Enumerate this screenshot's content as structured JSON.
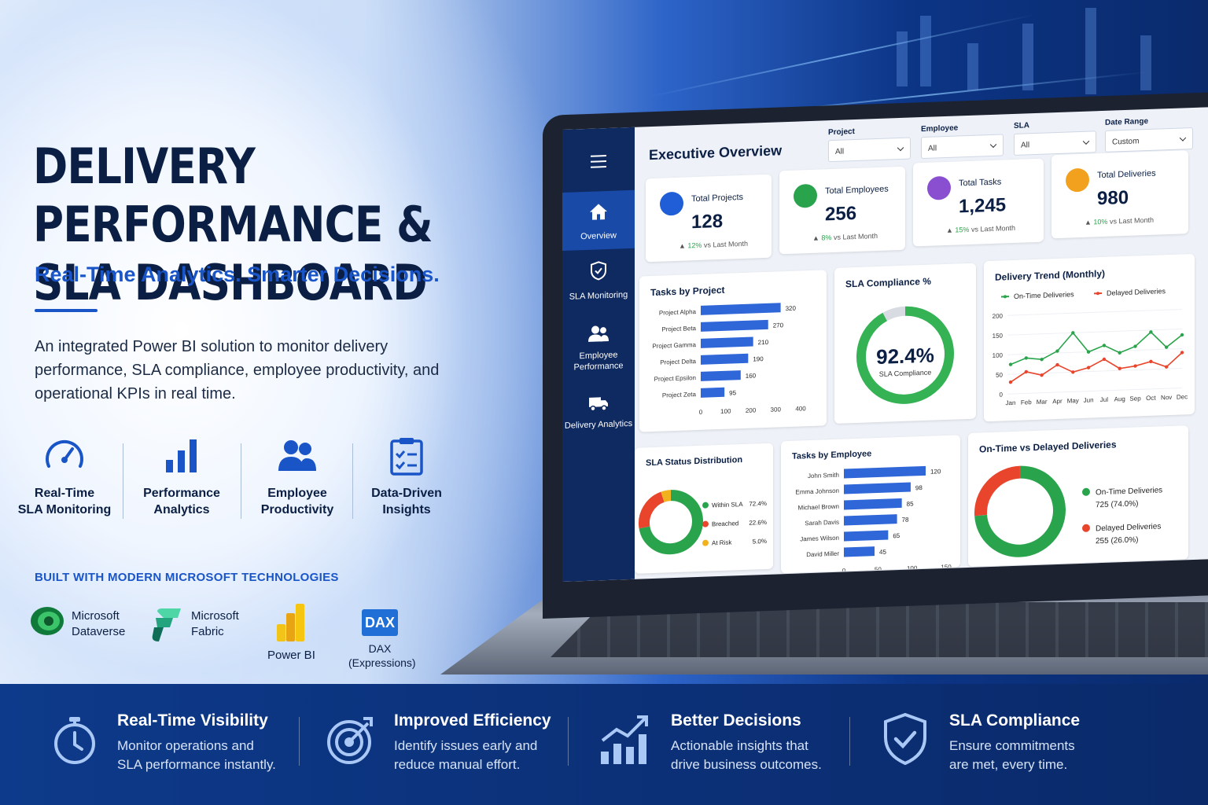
{
  "hero": {
    "title_line1": "DELIVERY PERFORMANCE &",
    "title_line2": "SLA DASHBOARD",
    "tagline": "Real-Time Analytics. Smarter Decisions.",
    "description": "An integrated Power BI solution to monitor delivery performance, SLA compliance, employee productivity, and operational KPIs in real time."
  },
  "features": [
    {
      "line1": "Real-Time",
      "line2": "SLA Monitoring",
      "icon": "speedometer-icon"
    },
    {
      "line1": "Performance",
      "line2": "Analytics",
      "icon": "bar-chart-icon"
    },
    {
      "line1": "Employee",
      "line2": "Productivity",
      "icon": "people-icon"
    },
    {
      "line1": "Data-Driven",
      "line2": "Insights",
      "icon": "clipboard-icon"
    }
  ],
  "tech": {
    "heading": "BUILT WITH MODERN MICROSOFT TECHNOLOGIES",
    "items": [
      {
        "line1": "Microsoft",
        "line2": "Dataverse"
      },
      {
        "line1": "Microsoft",
        "line2": "Fabric"
      },
      {
        "line1": "Power BI",
        "line2": ""
      },
      {
        "line1": "DAX",
        "line2": "(Expressions)",
        "badge": "DAX"
      }
    ]
  },
  "dashboard": {
    "title": "Executive Overview",
    "nav": [
      {
        "label": "Overview",
        "icon": "home-icon",
        "active": true
      },
      {
        "label": "SLA Monitoring",
        "icon": "shield-icon"
      },
      {
        "label": "Employee Performance",
        "icon": "people-icon"
      },
      {
        "label": "Delivery Analytics",
        "icon": "truck-icon"
      }
    ],
    "filters": [
      {
        "label": "Project",
        "value": "All"
      },
      {
        "label": "Employee",
        "value": "All"
      },
      {
        "label": "SLA",
        "value": "All"
      },
      {
        "label": "Date Range",
        "value": "Custom"
      }
    ],
    "kpis": [
      {
        "title": "Total Projects",
        "value": "128",
        "delta": "12%",
        "delta_text": "vs Last Month",
        "color": "#1f5ed6"
      },
      {
        "title": "Total Employees",
        "value": "256",
        "delta": "8%",
        "delta_text": "vs Last Month",
        "color": "#2aa44c"
      },
      {
        "title": "Total Tasks",
        "value": "1,245",
        "delta": "15%",
        "delta_text": "vs Last Month",
        "color": "#8a4fd0"
      },
      {
        "title": "Total Deliveries",
        "value": "980",
        "delta": "10%",
        "delta_text": "vs Last Month",
        "color": "#f2a11e"
      }
    ],
    "sla_gauge": {
      "title": "SLA Compliance %",
      "value": "92.4%",
      "caption": "SLA Compliance",
      "fraction": 0.924
    },
    "sla_status": {
      "title": "SLA Status Distribution",
      "items": [
        {
          "label": "Within SLA",
          "pct": "72.4%",
          "value": 72.4,
          "color": "#2aa44c"
        },
        {
          "label": "Breached",
          "pct": "22.6%",
          "value": 22.6,
          "color": "#e8452c"
        },
        {
          "label": "At Risk",
          "pct": "5.0%",
          "value": 5.0,
          "color": "#f2b21e"
        }
      ]
    },
    "ontime_donut": {
      "title": "On-Time vs Delayed Deliveries",
      "items": [
        {
          "label": "On-Time Deliveries",
          "detail": "725 (74.0%)",
          "value": 74.0,
          "color": "#2aa44c"
        },
        {
          "label": "Delayed Deliveries",
          "detail": "255 (26.0%)",
          "value": 26.0,
          "color": "#e8452c"
        }
      ]
    }
  },
  "chart_data": [
    {
      "type": "bar",
      "title": "Tasks by Project",
      "orientation": "horizontal",
      "categories": [
        "Project Alpha",
        "Project Beta",
        "Project Gamma",
        "Project Delta",
        "Project Epsilon",
        "Project Zeta"
      ],
      "values": [
        320,
        270,
        210,
        190,
        160,
        95
      ],
      "xlim": [
        0,
        400
      ],
      "ticks": [
        "0",
        "100",
        "200",
        "300",
        "400"
      ],
      "color": "#2f66d8"
    },
    {
      "type": "line",
      "title": "Delivery Trend (Monthly)",
      "categories": [
        "Jan",
        "Feb",
        "Mar",
        "Apr",
        "May",
        "Jun",
        "Jul",
        "Aug",
        "Sep",
        "Oct",
        "Nov",
        "Dec"
      ],
      "series": [
        {
          "name": "On-Time Deliveries",
          "values": [
            75,
            90,
            85,
            105,
            150,
            100,
            115,
            95,
            110,
            145,
            105,
            135
          ],
          "color": "#2aa44c"
        },
        {
          "name": "Delayed Deliveries",
          "values": [
            30,
            55,
            45,
            70,
            50,
            60,
            80,
            55,
            60,
            70,
            55,
            90
          ],
          "color": "#e8452c"
        }
      ],
      "ylim": [
        0,
        200
      ],
      "yticks": [
        "200",
        "150",
        "100",
        "50",
        "0"
      ]
    },
    {
      "type": "bar",
      "title": "Tasks by Employee",
      "orientation": "horizontal",
      "categories": [
        "John Smith",
        "Emma Johnson",
        "Michael Brown",
        "Sarah Davis",
        "James Wilson",
        "David Miller"
      ],
      "values": [
        120,
        98,
        85,
        78,
        65,
        45
      ],
      "xlim": [
        0,
        150
      ],
      "ticks": [
        "0",
        "50",
        "100",
        "150"
      ],
      "color": "#2f66d8"
    }
  ],
  "benefits": [
    {
      "title": "Real-Time Visibility",
      "line1": "Monitor operations and",
      "line2": "SLA performance instantly."
    },
    {
      "title": "Improved Efficiency",
      "line1": "Identify issues early and",
      "line2": "reduce manual effort."
    },
    {
      "title": "Better Decisions",
      "line1": "Actionable insights that",
      "line2": "drive business outcomes."
    },
    {
      "title": "SLA Compliance",
      "line1": "Ensure commitments",
      "line2": "are met, every time."
    }
  ]
}
